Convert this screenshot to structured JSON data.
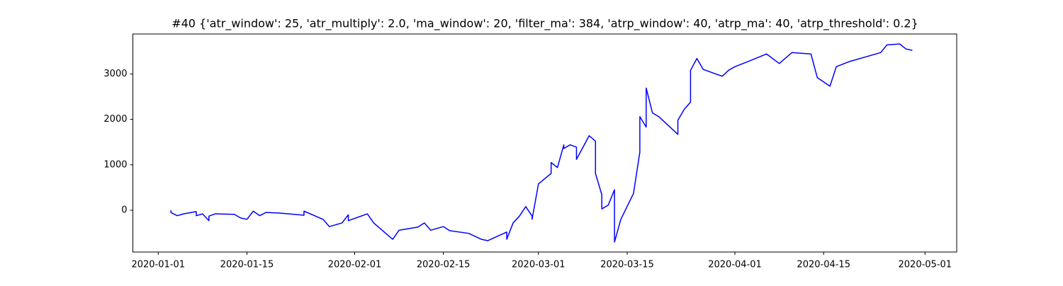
{
  "chart_data": {
    "type": "line",
    "title": "#40 {'atr_window': 25, 'atr_multiply': 2.0, 'ma_window': 20, 'filter_ma': 384, 'atrp_window': 40, 'atrp_ma': 40, 'atrp_threshold': 0.2}",
    "color": "#0000ff",
    "x": [
      "2020-01-03",
      "2020-01-03",
      "2020-01-04",
      "2020-01-05",
      "2020-01-07",
      "2020-01-07",
      "2020-01-08",
      "2020-01-09",
      "2020-01-09",
      "2020-01-10",
      "2020-01-13",
      "2020-01-14",
      "2020-01-15",
      "2020-01-16",
      "2020-01-17",
      "2020-01-18",
      "2020-01-20",
      "2020-01-24",
      "2020-01-24",
      "2020-01-27",
      "2020-01-28",
      "2020-01-30",
      "2020-01-31",
      "2020-01-31",
      "2020-02-03",
      "2020-02-04",
      "2020-02-06",
      "2020-02-07",
      "2020-02-08",
      "2020-02-11",
      "2020-02-12",
      "2020-02-13",
      "2020-02-15",
      "2020-02-16",
      "2020-02-19",
      "2020-02-21",
      "2020-02-22",
      "2020-02-25",
      "2020-02-25",
      "2020-02-26",
      "2020-02-27",
      "2020-02-28",
      "2020-02-29",
      "2020-02-29",
      "2020-03-01",
      "2020-03-03",
      "2020-03-03",
      "2020-03-04",
      "2020-03-05",
      "2020-03-05",
      "2020-03-06",
      "2020-03-07",
      "2020-03-07",
      "2020-03-09",
      "2020-03-10",
      "2020-03-10",
      "2020-03-11",
      "2020-03-11",
      "2020-03-12",
      "2020-03-13",
      "2020-03-13",
      "2020-03-13",
      "2020-03-14",
      "2020-03-16",
      "2020-03-17",
      "2020-03-17",
      "2020-03-18",
      "2020-03-18",
      "2020-03-19",
      "2020-03-20",
      "2020-03-23",
      "2020-03-23",
      "2020-03-24",
      "2020-03-25",
      "2020-03-25",
      "2020-03-26",
      "2020-03-27",
      "2020-03-30",
      "2020-03-31",
      "2020-04-01",
      "2020-04-03",
      "2020-04-06",
      "2020-04-08",
      "2020-04-10",
      "2020-04-13",
      "2020-04-14",
      "2020-04-16",
      "2020-04-17",
      "2020-04-19",
      "2020-04-24",
      "2020-04-25",
      "2020-04-27",
      "2020-04-28",
      "2020-04-29"
    ],
    "values": [
      0,
      -50,
      -120,
      -80,
      -30,
      -120,
      -80,
      -230,
      -130,
      -80,
      -90,
      -170,
      -200,
      -20,
      -120,
      -50,
      -60,
      -110,
      -20,
      -200,
      -360,
      -280,
      -100,
      -230,
      -80,
      -280,
      -520,
      -640,
      -440,
      -370,
      -280,
      -440,
      -360,
      -450,
      -510,
      -640,
      -670,
      -480,
      -640,
      -280,
      -130,
      80,
      -130,
      -200,
      580,
      810,
      1050,
      940,
      1440,
      1360,
      1440,
      1390,
      1120,
      1640,
      1520,
      810,
      340,
      30,
      110,
      450,
      110,
      -700,
      -200,
      370,
      1280,
      2060,
      1830,
      2690,
      2140,
      2060,
      1670,
      1980,
      2220,
      2380,
      3080,
      3340,
      3100,
      2950,
      3080,
      3160,
      3270,
      3440,
      3230,
      3470,
      3440,
      2920,
      2730,
      3160,
      3270,
      3470,
      3640,
      3660,
      3550,
      3520
    ],
    "xlim": [
      "2019-12-28",
      "2020-05-06"
    ],
    "xticks": [
      "2020-01-01",
      "2020-01-15",
      "2020-02-01",
      "2020-02-15",
      "2020-03-01",
      "2020-03-15",
      "2020-04-01",
      "2020-04-15",
      "2020-05-01"
    ],
    "ylim": [
      -920,
      3880
    ],
    "yticks": [
      0,
      1000,
      2000,
      3000
    ]
  }
}
